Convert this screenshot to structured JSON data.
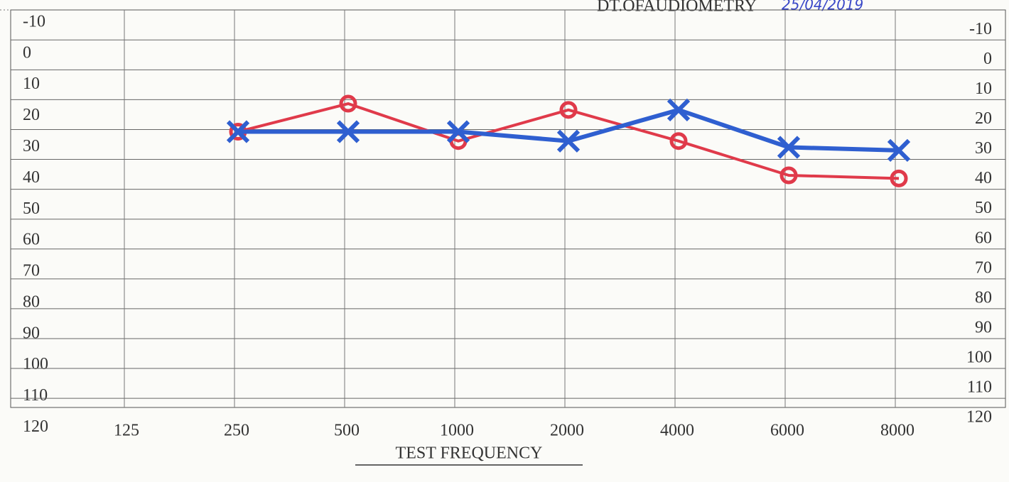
{
  "chart_data": {
    "type": "line",
    "header": "DT.OFAUDIOMETRY",
    "date": "25/04/2019",
    "xlabel": "TEST FREQUENCY",
    "categories": [
      "125",
      "250",
      "500",
      "1000",
      "2000",
      "4000",
      "6000",
      "8000"
    ],
    "series": [
      {
        "color": "#e03a4a",
        "marker": "o",
        "values": [
          null,
          25,
          16,
          28,
          18,
          28,
          39,
          40
        ]
      },
      {
        "color": "#2f5fd0",
        "marker": "x",
        "values": [
          null,
          25,
          25,
          25,
          28,
          18,
          30,
          31
        ]
      }
    ],
    "ylim": [
      -15,
      124
    ],
    "yticks": [
      -10,
      0,
      10,
      20,
      30,
      40,
      50,
      60,
      70,
      80,
      90,
      100,
      110,
      120
    ],
    "y2lim": [
      -21,
      124
    ],
    "y2ticks": [
      -10,
      0,
      10,
      20,
      30,
      40,
      50,
      60,
      70,
      80,
      90,
      100,
      110,
      120
    ],
    "grid": true
  }
}
